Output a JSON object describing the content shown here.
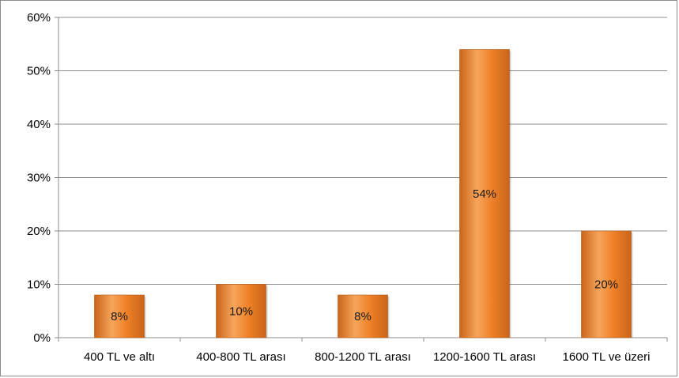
{
  "chart_data": {
    "type": "bar",
    "categories": [
      "400 TL ve altı",
      "400-800 TL arası",
      "800-1200 TL arası",
      "1200-1600 TL arası",
      "1600 TL ve üzeri"
    ],
    "values": [
      8,
      10,
      8,
      54,
      20
    ],
    "data_labels": [
      "8%",
      "10%",
      "8%",
      "54%",
      "20%"
    ],
    "title": "",
    "xlabel": "",
    "ylabel": "",
    "ylim": [
      0,
      60
    ],
    "y_ticks": [
      0,
      10,
      20,
      30,
      40,
      50,
      60
    ],
    "y_tick_labels": [
      "0%",
      "10%",
      "20%",
      "30%",
      "40%",
      "50%",
      "60%"
    ],
    "grid": true,
    "legend": "none",
    "colors": {
      "bar_fill": "#ee8027",
      "bar_fill_light": "#f7a55b",
      "bar_fill_dark": "#c9651a",
      "bar_edge": "#b35a17",
      "gridline": "#8c8c8c",
      "axis": "#8c8c8c"
    }
  }
}
